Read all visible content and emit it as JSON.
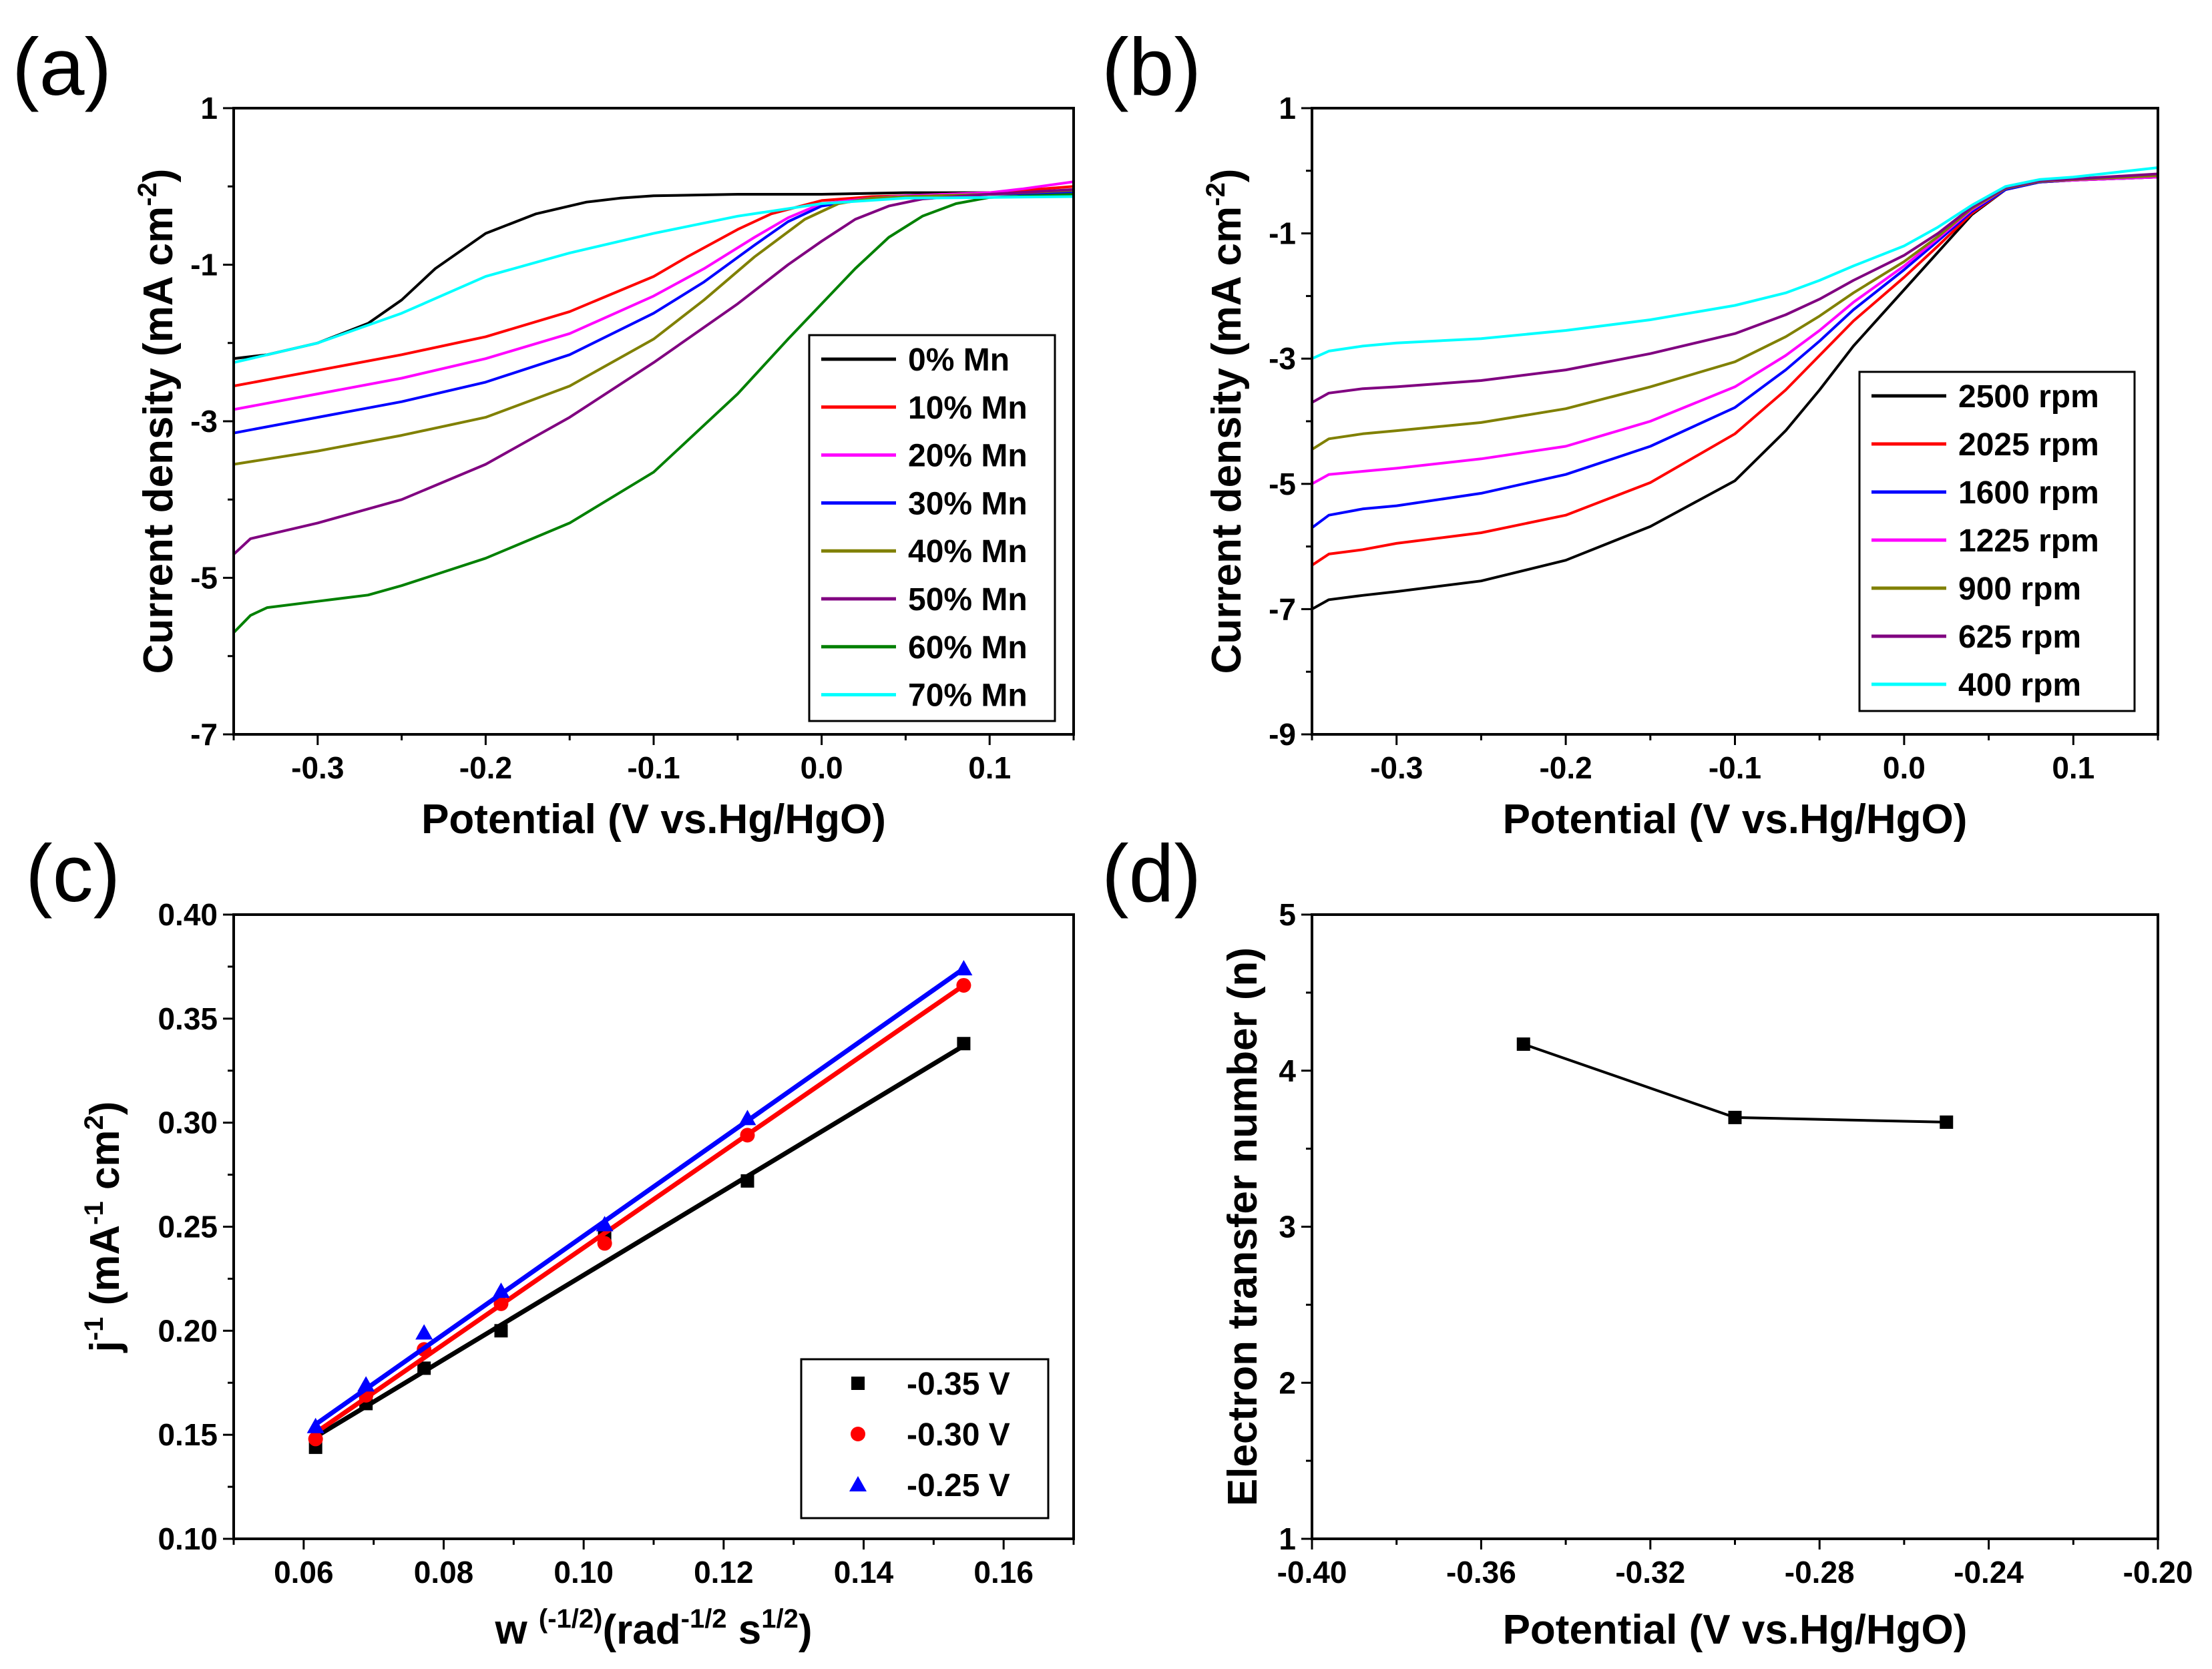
{
  "chart_data": [
    {
      "type": "line",
      "panel_label": "(a)",
      "xlabel": "Potential (V vs.Hg/HgO)",
      "ylabel": "Current density (mA cm",
      "ylabel_sup": "-2",
      "ylabel_close": ")",
      "xlim": [
        -0.35,
        0.15
      ],
      "ylim": [
        -7,
        1
      ],
      "xticks": [
        -0.3,
        -0.2,
        -0.1,
        0.0,
        0.1
      ],
      "xtick_labels": [
        "-0.3",
        "-0.2",
        "-0.1",
        "0.0",
        "0.1"
      ],
      "yticks": [
        -7,
        -5,
        -3,
        -1,
        1
      ],
      "ytick_labels": [
        "-7",
        "-5",
        "-3",
        "-1",
        "1"
      ],
      "legend_position": "bottom-right",
      "series": [
        {
          "name": "0% Mn",
          "color": "#000000",
          "x": [
            -0.35,
            -0.33,
            -0.3,
            -0.27,
            -0.25,
            -0.23,
            -0.2,
            -0.17,
            -0.14,
            -0.12,
            -0.1,
            -0.05,
            0.0,
            0.05,
            0.1,
            0.15
          ],
          "y": [
            -2.2,
            -2.15,
            -2.0,
            -1.75,
            -1.45,
            -1.05,
            -0.6,
            -0.35,
            -0.2,
            -0.15,
            -0.12,
            -0.1,
            -0.1,
            -0.08,
            -0.08,
            -0.06
          ]
        },
        {
          "name": "10% Mn",
          "color": "#ff0000",
          "x": [
            -0.35,
            -0.3,
            -0.25,
            -0.2,
            -0.15,
            -0.1,
            -0.08,
            -0.05,
            -0.03,
            0.0,
            0.03,
            0.05,
            0.1,
            0.12,
            0.15
          ],
          "y": [
            -2.55,
            -2.35,
            -2.15,
            -1.92,
            -1.6,
            -1.15,
            -0.9,
            -0.55,
            -0.35,
            -0.18,
            -0.13,
            -0.12,
            -0.08,
            -0.05,
            0.0
          ]
        },
        {
          "name": "20% Mn",
          "color": "#ff00ff",
          "x": [
            -0.35,
            -0.3,
            -0.25,
            -0.2,
            -0.15,
            -0.1,
            -0.07,
            -0.04,
            -0.02,
            0.0,
            0.03,
            0.05,
            0.1,
            0.12,
            0.15
          ],
          "y": [
            -2.85,
            -2.65,
            -2.45,
            -2.2,
            -1.88,
            -1.4,
            -1.05,
            -0.65,
            -0.4,
            -0.22,
            -0.15,
            -0.12,
            -0.08,
            -0.03,
            0.06
          ]
        },
        {
          "name": "30% Mn",
          "color": "#0000ff",
          "x": [
            -0.35,
            -0.3,
            -0.25,
            -0.2,
            -0.15,
            -0.1,
            -0.07,
            -0.04,
            -0.02,
            0.0,
            0.03,
            0.05,
            0.1,
            0.15
          ],
          "y": [
            -3.15,
            -2.95,
            -2.75,
            -2.5,
            -2.15,
            -1.62,
            -1.22,
            -0.75,
            -0.45,
            -0.25,
            -0.15,
            -0.13,
            -0.1,
            -0.08
          ]
        },
        {
          "name": "40% Mn",
          "color": "#808000",
          "x": [
            -0.35,
            -0.3,
            -0.25,
            -0.2,
            -0.15,
            -0.1,
            -0.07,
            -0.04,
            -0.01,
            0.01,
            0.03,
            0.05,
            0.1,
            0.15
          ],
          "y": [
            -3.55,
            -3.38,
            -3.18,
            -2.95,
            -2.55,
            -1.95,
            -1.45,
            -0.9,
            -0.42,
            -0.22,
            -0.15,
            -0.13,
            -0.1,
            -0.05
          ]
        },
        {
          "name": "50% Mn",
          "color": "#800080",
          "x": [
            -0.35,
            -0.34,
            -0.32,
            -0.3,
            -0.25,
            -0.2,
            -0.15,
            -0.1,
            -0.05,
            -0.02,
            0.0,
            0.02,
            0.04,
            0.06,
            0.1,
            0.15
          ],
          "y": [
            -4.7,
            -4.5,
            -4.4,
            -4.3,
            -4.0,
            -3.55,
            -2.95,
            -2.25,
            -1.5,
            -1.0,
            -0.7,
            -0.42,
            -0.25,
            -0.16,
            -0.1,
            -0.04
          ]
        },
        {
          "name": "60% Mn",
          "color": "#008000",
          "x": [
            -0.35,
            -0.34,
            -0.33,
            -0.3,
            -0.27,
            -0.25,
            -0.2,
            -0.15,
            -0.1,
            -0.05,
            -0.02,
            0.0,
            0.02,
            0.04,
            0.06,
            0.08,
            0.1,
            0.15
          ],
          "y": [
            -5.7,
            -5.48,
            -5.38,
            -5.3,
            -5.22,
            -5.1,
            -4.75,
            -4.3,
            -3.65,
            -2.65,
            -1.95,
            -1.5,
            -1.05,
            -0.65,
            -0.38,
            -0.22,
            -0.14,
            -0.1
          ]
        },
        {
          "name": "70% Mn",
          "color": "#00ffff",
          "x": [
            -0.35,
            -0.3,
            -0.25,
            -0.2,
            -0.15,
            -0.1,
            -0.05,
            0.0,
            0.05,
            0.1,
            0.15
          ],
          "y": [
            -2.25,
            -2.0,
            -1.62,
            -1.15,
            -0.85,
            -0.6,
            -0.38,
            -0.22,
            -0.15,
            -0.14,
            -0.13
          ]
        }
      ]
    },
    {
      "type": "line",
      "panel_label": "(b)",
      "xlabel": "Potential (V vs.Hg/HgO)",
      "ylabel": "Current density (mA cm",
      "ylabel_sup": "-2",
      "ylabel_close": ")",
      "xlim": [
        -0.35,
        0.15
      ],
      "ylim": [
        -9,
        1
      ],
      "xticks": [
        -0.3,
        -0.2,
        -0.1,
        0.0,
        0.1
      ],
      "xtick_labels": [
        "-0.3",
        "-0.2",
        "-0.1",
        "0.0",
        "0.1"
      ],
      "yticks": [
        -9,
        -7,
        -5,
        -3,
        -1,
        1
      ],
      "ytick_labels": [
        "-9",
        "-7",
        "-5",
        "-3",
        "-1",
        "1"
      ],
      "legend_position": "bottom-right",
      "series": [
        {
          "name": "2500 rpm",
          "color": "#000000",
          "x": [
            -0.35,
            -0.34,
            -0.32,
            -0.3,
            -0.25,
            -0.2,
            -0.15,
            -0.1,
            -0.07,
            -0.05,
            -0.03,
            0.0,
            0.02,
            0.04,
            0.06,
            0.08,
            0.1,
            0.15
          ],
          "y": [
            -7.0,
            -6.85,
            -6.78,
            -6.72,
            -6.55,
            -6.22,
            -5.68,
            -4.95,
            -4.15,
            -3.5,
            -2.8,
            -1.9,
            -1.3,
            -0.7,
            -0.3,
            -0.18,
            -0.15,
            -0.1
          ]
        },
        {
          "name": "2025 rpm",
          "color": "#ff0000",
          "x": [
            -0.35,
            -0.34,
            -0.32,
            -0.3,
            -0.25,
            -0.2,
            -0.15,
            -0.1,
            -0.07,
            -0.05,
            -0.03,
            0.0,
            0.02,
            0.04,
            0.06,
            0.08,
            0.1,
            0.15
          ],
          "y": [
            -6.3,
            -6.12,
            -6.05,
            -5.95,
            -5.78,
            -5.5,
            -4.98,
            -4.2,
            -3.5,
            -2.95,
            -2.4,
            -1.7,
            -1.2,
            -0.68,
            -0.3,
            -0.18,
            -0.15,
            -0.1
          ]
        },
        {
          "name": "1600 rpm",
          "color": "#0000ff",
          "x": [
            -0.35,
            -0.34,
            -0.32,
            -0.3,
            -0.25,
            -0.2,
            -0.15,
            -0.1,
            -0.07,
            -0.05,
            -0.03,
            0.0,
            0.02,
            0.04,
            0.06,
            0.08,
            0.1,
            0.15
          ],
          "y": [
            -5.7,
            -5.5,
            -5.4,
            -5.35,
            -5.15,
            -4.85,
            -4.4,
            -3.78,
            -3.18,
            -2.72,
            -2.22,
            -1.58,
            -1.12,
            -0.65,
            -0.3,
            -0.18,
            -0.15,
            -0.1
          ]
        },
        {
          "name": "1225 rpm",
          "color": "#ff00ff",
          "x": [
            -0.35,
            -0.34,
            -0.32,
            -0.3,
            -0.25,
            -0.2,
            -0.15,
            -0.1,
            -0.07,
            -0.05,
            -0.03,
            0.0,
            0.02,
            0.04,
            0.06,
            0.08,
            0.1,
            0.15
          ],
          "y": [
            -5.0,
            -4.85,
            -4.8,
            -4.75,
            -4.6,
            -4.4,
            -4.0,
            -3.45,
            -2.95,
            -2.55,
            -2.1,
            -1.52,
            -1.08,
            -0.62,
            -0.28,
            -0.17,
            -0.15,
            -0.1
          ]
        },
        {
          "name": "900 rpm",
          "color": "#808000",
          "x": [
            -0.35,
            -0.34,
            -0.32,
            -0.3,
            -0.25,
            -0.2,
            -0.15,
            -0.1,
            -0.07,
            -0.05,
            -0.03,
            0.0,
            0.02,
            0.04,
            0.06,
            0.08,
            0.1,
            0.15
          ],
          "y": [
            -4.45,
            -4.28,
            -4.2,
            -4.15,
            -4.02,
            -3.8,
            -3.45,
            -3.05,
            -2.65,
            -2.32,
            -1.95,
            -1.45,
            -1.05,
            -0.6,
            -0.28,
            -0.17,
            -0.14,
            -0.08
          ]
        },
        {
          "name": "625 rpm",
          "color": "#800080",
          "x": [
            -0.35,
            -0.34,
            -0.32,
            -0.3,
            -0.25,
            -0.2,
            -0.15,
            -0.1,
            -0.07,
            -0.05,
            -0.03,
            0.0,
            0.02,
            0.04,
            0.06,
            0.08,
            0.1,
            0.15
          ],
          "y": [
            -3.7,
            -3.55,
            -3.48,
            -3.45,
            -3.35,
            -3.18,
            -2.92,
            -2.6,
            -2.3,
            -2.05,
            -1.75,
            -1.35,
            -1.0,
            -0.58,
            -0.27,
            -0.16,
            -0.13,
            -0.05
          ]
        },
        {
          "name": "400 rpm",
          "color": "#00ffff",
          "x": [
            -0.35,
            -0.34,
            -0.32,
            -0.3,
            -0.25,
            -0.2,
            -0.15,
            -0.1,
            -0.07,
            -0.05,
            -0.03,
            0.0,
            0.02,
            0.04,
            0.06,
            0.08,
            0.1,
            0.15
          ],
          "y": [
            -3.0,
            -2.88,
            -2.8,
            -2.75,
            -2.68,
            -2.55,
            -2.38,
            -2.15,
            -1.95,
            -1.75,
            -1.52,
            -1.2,
            -0.9,
            -0.55,
            -0.25,
            -0.14,
            -0.1,
            0.05
          ]
        }
      ]
    },
    {
      "type": "scatter",
      "panel_label": "(c)",
      "xlabel_parts": [
        "w ",
        "(-1/2)",
        "(rad",
        "-1/2",
        " s",
        "1/2",
        ")"
      ],
      "ylabel_parts": [
        "j",
        "-1",
        " (mA",
        "-1",
        " cm",
        "2",
        ")"
      ],
      "xlim": [
        0.05,
        0.17
      ],
      "ylim": [
        0.1,
        0.4
      ],
      "xticks": [
        0.06,
        0.08,
        0.1,
        0.12,
        0.14,
        0.16
      ],
      "xtick_labels": [
        "0.06",
        "0.08",
        "0.10",
        "0.12",
        "0.14",
        "0.16"
      ],
      "yticks": [
        0.1,
        0.15,
        0.2,
        0.25,
        0.3,
        0.35,
        0.4
      ],
      "ytick_labels": [
        "0.10",
        "0.15",
        "0.20",
        "0.25",
        "0.30",
        "0.35",
        "0.40"
      ],
      "legend_position": "bottom-right",
      "series": [
        {
          "name": "-0.35 V",
          "color": "#000000",
          "marker": "square",
          "x": [
            0.0617,
            0.0689,
            0.0772,
            0.0882,
            0.103,
            0.1234,
            0.1543
          ],
          "y": [
            0.144,
            0.165,
            0.182,
            0.2,
            0.245,
            0.272,
            0.338
          ],
          "fit": [
            [
              0.0617,
              0.149
            ],
            [
              0.1543,
              0.337
            ]
          ]
        },
        {
          "name": "-0.30 V",
          "color": "#ff0000",
          "marker": "circle",
          "x": [
            0.0617,
            0.0689,
            0.0772,
            0.0882,
            0.103,
            0.1234,
            0.1543
          ],
          "y": [
            0.148,
            0.169,
            0.191,
            0.213,
            0.242,
            0.294,
            0.366
          ],
          "fit": [
            [
              0.0617,
              0.151
            ],
            [
              0.1543,
              0.366
            ]
          ]
        },
        {
          "name": "-0.25 V",
          "color": "#0000ff",
          "marker": "triangle",
          "x": [
            0.0617,
            0.0689,
            0.0772,
            0.0882,
            0.103,
            0.1234,
            0.1543
          ],
          "y": [
            0.154,
            0.174,
            0.199,
            0.219,
            0.251,
            0.302,
            0.374
          ],
          "fit": [
            [
              0.0617,
              0.155
            ],
            [
              0.1543,
              0.374
            ]
          ]
        }
      ]
    },
    {
      "type": "line",
      "panel_label": "(d)",
      "xlabel": "Potential (V vs.Hg/HgO)",
      "ylabel": "Electron transfer number (n)",
      "xlim": [
        -0.4,
        -0.2
      ],
      "ylim": [
        1,
        5
      ],
      "xticks": [
        -0.4,
        -0.36,
        -0.32,
        -0.28,
        -0.24,
        -0.2
      ],
      "xtick_labels": [
        "-0.40",
        "-0.36",
        "-0.32",
        "-0.28",
        "-0.24",
        "-0.20"
      ],
      "yticks": [
        1,
        2,
        3,
        4,
        5
      ],
      "ytick_labels": [
        "1",
        "2",
        "3",
        "4",
        "5"
      ],
      "series": [
        {
          "name": "n",
          "color": "#000000",
          "marker": "square",
          "x": [
            -0.35,
            -0.3,
            -0.25
          ],
          "y": [
            4.17,
            3.7,
            3.67
          ]
        }
      ]
    }
  ]
}
